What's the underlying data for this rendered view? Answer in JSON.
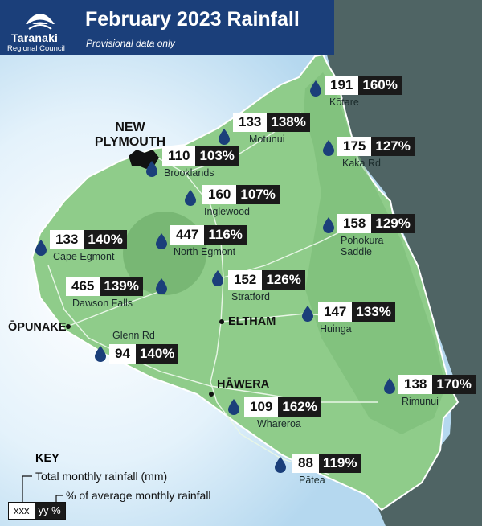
{
  "header": {
    "title": "February 2023 Rainfall",
    "subtitle": "Provisional data only",
    "logo_line1": "Taranaki",
    "logo_line2": "Regional Council"
  },
  "colors": {
    "header": "#1b3f7a",
    "land": "#8fcc8a",
    "sea": "#cde6f6",
    "hinterland": "#4f6464",
    "drop": "#1b3f7a",
    "value_box_dark": "#1a1a1a"
  },
  "towns": {
    "new_plymouth": "NEW PLYMOUTH",
    "opunake": "ŌPUNAKE",
    "eltham": "ELTHAM",
    "hawera": "HĀWERA"
  },
  "stations": [
    {
      "name": "Kōtare",
      "rainfall_mm": "191",
      "percent": "160%"
    },
    {
      "name": "Motunui",
      "rainfall_mm": "133",
      "percent": "138%"
    },
    {
      "name": "Kaka Rd",
      "rainfall_mm": "175",
      "percent": "127%"
    },
    {
      "name": "Brooklands",
      "rainfall_mm": "110",
      "percent": "103%"
    },
    {
      "name": "Inglewood",
      "rainfall_mm": "160",
      "percent": "107%"
    },
    {
      "name": "Pohokura\nSaddle",
      "rainfall_mm": "158",
      "percent": "129%"
    },
    {
      "name": "Cape Egmont",
      "rainfall_mm": "133",
      "percent": "140%"
    },
    {
      "name": "North Egmont",
      "rainfall_mm": "447",
      "percent": "116%"
    },
    {
      "name": "Stratford",
      "rainfall_mm": "152",
      "percent": "126%"
    },
    {
      "name": "Dawson Falls",
      "rainfall_mm": "465",
      "percent": "139%"
    },
    {
      "name": "Huinga",
      "rainfall_mm": "147",
      "percent": "133%"
    },
    {
      "name": "Glenn Rd",
      "rainfall_mm": "94",
      "percent": "140%"
    },
    {
      "name": "Rimunui",
      "rainfall_mm": "138",
      "percent": "170%"
    },
    {
      "name": "Whareroa",
      "rainfall_mm": "109",
      "percent": "162%"
    },
    {
      "name": "Pātea",
      "rainfall_mm": "88",
      "percent": "119%"
    }
  ],
  "key": {
    "title": "KEY",
    "line1": "Total monthly rainfall (mm)",
    "line2": "% of average monthly rainfall",
    "sample_mm": "xxx",
    "sample_pct": "yy %"
  }
}
